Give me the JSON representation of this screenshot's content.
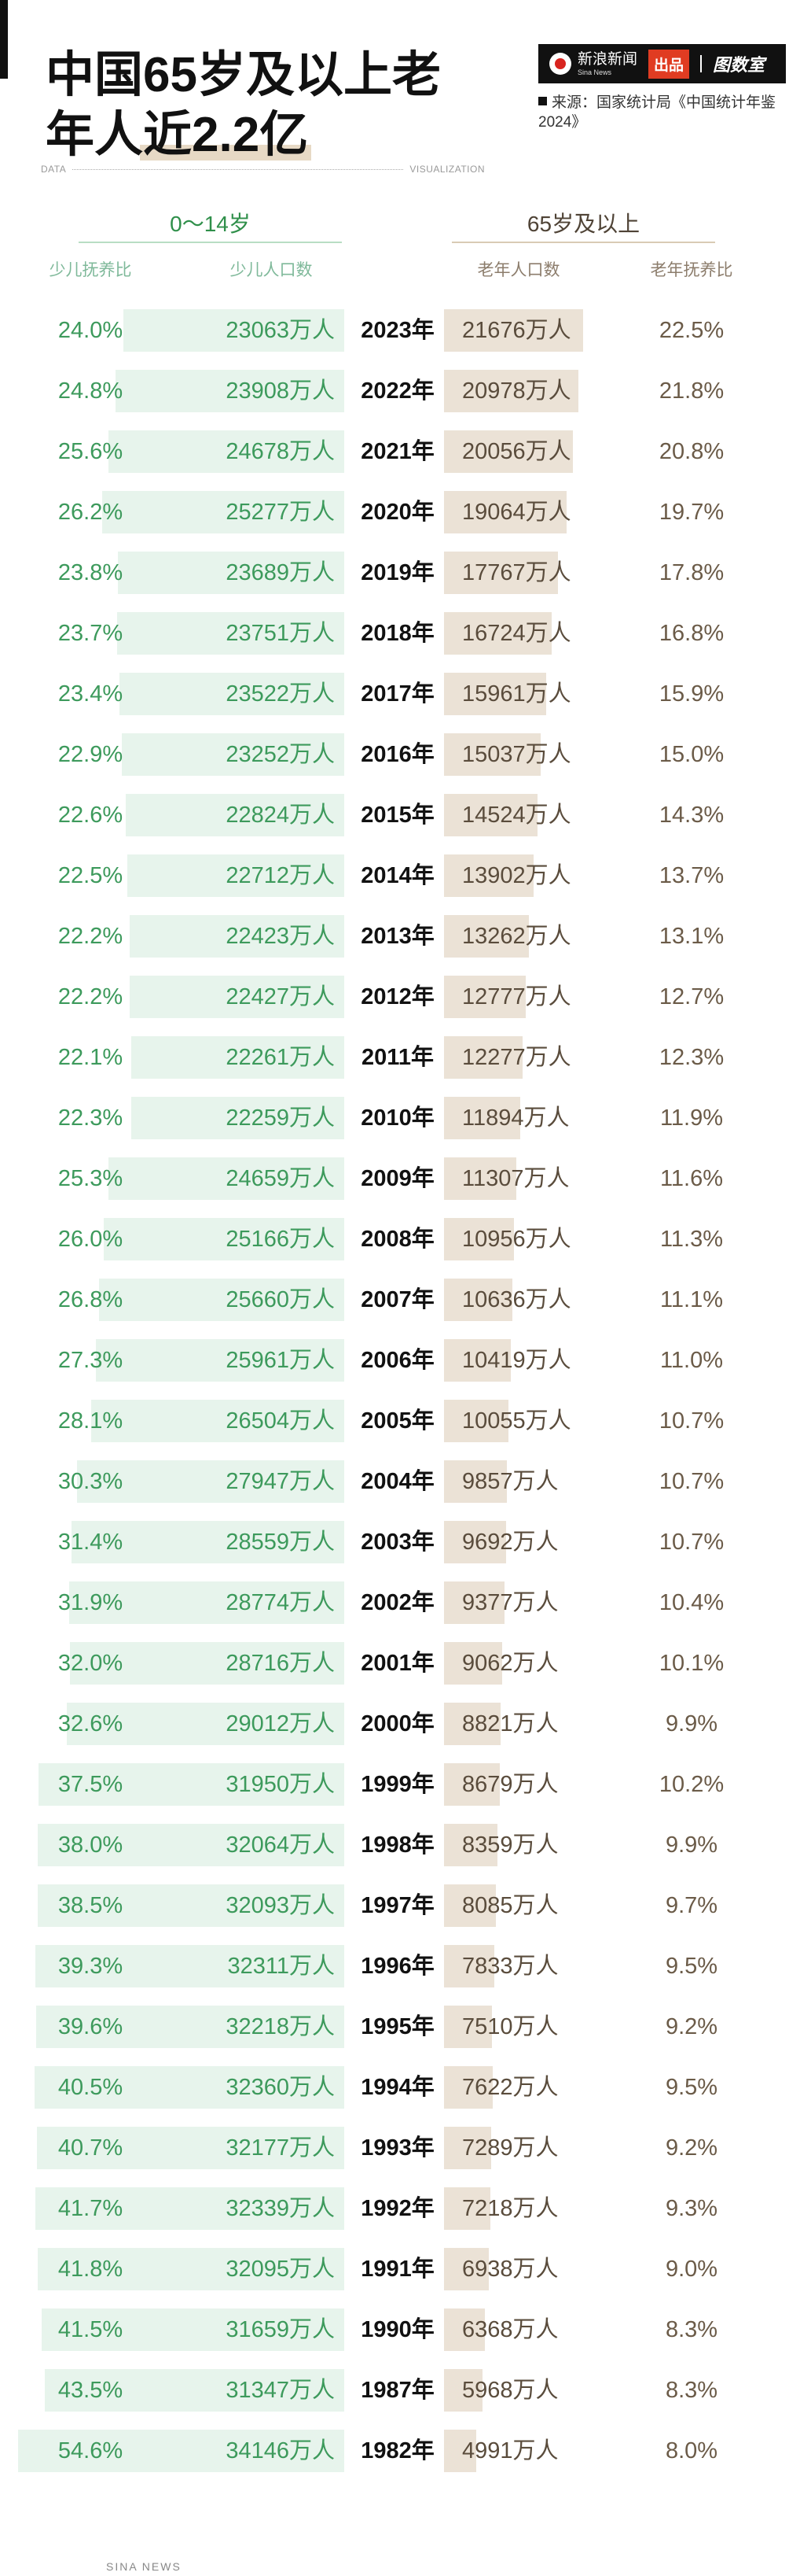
{
  "title": {
    "line1": "中国65岁及以上老",
    "line2_plain": "年人",
    "line2_highlight": "近2.2亿"
  },
  "logo": {
    "main": "新浪新闻",
    "sub": "Sina News",
    "badge": "出品",
    "brand": "图数室"
  },
  "source": {
    "text": "来源：国家统计局《中国统计年鉴2024》"
  },
  "labels": {
    "data": "DATA",
    "visualization": "VISUALIZATION"
  },
  "groups": {
    "young": "0～14岁",
    "old": "65岁及以上"
  },
  "columns": {
    "young_ratio": "少儿抚养比",
    "young_pop": "少儿人口数",
    "old_pop": "老年人口数",
    "old_ratio": "老年抚养比"
  },
  "unit": "万人",
  "colors": {
    "young_bar": "#e7f4ec",
    "young_text": "#3d9a5c",
    "old_bar": "#ebe2d6",
    "old_text": "#5a4c3c",
    "highlight": "#e7d9c5"
  },
  "footer": "SINA NEWS",
  "chart_data": {
    "type": "table",
    "title": "中国65岁及以上老年人近2.2亿",
    "columns": [
      "少儿抚养比",
      "少儿人口数",
      "年份",
      "老年人口数",
      "老年抚养比"
    ],
    "rows": [
      {
        "year": "2023年",
        "young_ratio": "24.0%",
        "young_pop": "23063万人",
        "young_value": 23063,
        "old_pop": "21676万人",
        "old_value": 21676,
        "old_ratio": "22.5%"
      },
      {
        "year": "2022年",
        "young_ratio": "24.8%",
        "young_pop": "23908万人",
        "young_value": 23908,
        "old_pop": "20978万人",
        "old_value": 20978,
        "old_ratio": "21.8%"
      },
      {
        "year": "2021年",
        "young_ratio": "25.6%",
        "young_pop": "24678万人",
        "young_value": 24678,
        "old_pop": "20056万人",
        "old_value": 20056,
        "old_ratio": "20.8%"
      },
      {
        "year": "2020年",
        "young_ratio": "26.2%",
        "young_pop": "25277万人",
        "young_value": 25277,
        "old_pop": "19064万人",
        "old_value": 19064,
        "old_ratio": "19.7%"
      },
      {
        "year": "2019年",
        "young_ratio": "23.8%",
        "young_pop": "23689万人",
        "young_value": 23689,
        "old_pop": "17767万人",
        "old_value": 17767,
        "old_ratio": "17.8%"
      },
      {
        "year": "2018年",
        "young_ratio": "23.7%",
        "young_pop": "23751万人",
        "young_value": 23751,
        "old_pop": "16724万人",
        "old_value": 16724,
        "old_ratio": "16.8%"
      },
      {
        "year": "2017年",
        "young_ratio": "23.4%",
        "young_pop": "23522万人",
        "young_value": 23522,
        "old_pop": "15961万人",
        "old_value": 15961,
        "old_ratio": "15.9%"
      },
      {
        "year": "2016年",
        "young_ratio": "22.9%",
        "young_pop": "23252万人",
        "young_value": 23252,
        "old_pop": "15037万人",
        "old_value": 15037,
        "old_ratio": "15.0%"
      },
      {
        "year": "2015年",
        "young_ratio": "22.6%",
        "young_pop": "22824万人",
        "young_value": 22824,
        "old_pop": "14524万人",
        "old_value": 14524,
        "old_ratio": "14.3%"
      },
      {
        "year": "2014年",
        "young_ratio": "22.5%",
        "young_pop": "22712万人",
        "young_value": 22712,
        "old_pop": "13902万人",
        "old_value": 13902,
        "old_ratio": "13.7%"
      },
      {
        "year": "2013年",
        "young_ratio": "22.2%",
        "young_pop": "22423万人",
        "young_value": 22423,
        "old_pop": "13262万人",
        "old_value": 13262,
        "old_ratio": "13.1%"
      },
      {
        "year": "2012年",
        "young_ratio": "22.2%",
        "young_pop": "22427万人",
        "young_value": 22427,
        "old_pop": "12777万人",
        "old_value": 12777,
        "old_ratio": "12.7%"
      },
      {
        "year": "2011年",
        "young_ratio": "22.1%",
        "young_pop": "22261万人",
        "young_value": 22261,
        "old_pop": "12277万人",
        "old_value": 12277,
        "old_ratio": "12.3%"
      },
      {
        "year": "2010年",
        "young_ratio": "22.3%",
        "young_pop": "22259万人",
        "young_value": 22259,
        "old_pop": "11894万人",
        "old_value": 11894,
        "old_ratio": "11.9%"
      },
      {
        "year": "2009年",
        "young_ratio": "25.3%",
        "young_pop": "24659万人",
        "young_value": 24659,
        "old_pop": "11307万人",
        "old_value": 11307,
        "old_ratio": "11.6%"
      },
      {
        "year": "2008年",
        "young_ratio": "26.0%",
        "young_pop": "25166万人",
        "young_value": 25166,
        "old_pop": "10956万人",
        "old_value": 10956,
        "old_ratio": "11.3%"
      },
      {
        "year": "2007年",
        "young_ratio": "26.8%",
        "young_pop": "25660万人",
        "young_value": 25660,
        "old_pop": "10636万人",
        "old_value": 10636,
        "old_ratio": "11.1%"
      },
      {
        "year": "2006年",
        "young_ratio": "27.3%",
        "young_pop": "25961万人",
        "young_value": 25961,
        "old_pop": "10419万人",
        "old_value": 10419,
        "old_ratio": "11.0%"
      },
      {
        "year": "2005年",
        "young_ratio": "28.1%",
        "young_pop": "26504万人",
        "young_value": 26504,
        "old_pop": "10055万人",
        "old_value": 10055,
        "old_ratio": "10.7%"
      },
      {
        "year": "2004年",
        "young_ratio": "30.3%",
        "young_pop": "27947万人",
        "young_value": 27947,
        "old_pop": "9857万人",
        "old_value": 9857,
        "old_ratio": "10.7%"
      },
      {
        "year": "2003年",
        "young_ratio": "31.4%",
        "young_pop": "28559万人",
        "young_value": 28559,
        "old_pop": "9692万人",
        "old_value": 9692,
        "old_ratio": "10.7%"
      },
      {
        "year": "2002年",
        "young_ratio": "31.9%",
        "young_pop": "28774万人",
        "young_value": 28774,
        "old_pop": "9377万人",
        "old_value": 9377,
        "old_ratio": "10.4%"
      },
      {
        "year": "2001年",
        "young_ratio": "32.0%",
        "young_pop": "28716万人",
        "young_value": 28716,
        "old_pop": "9062万人",
        "old_value": 9062,
        "old_ratio": "10.1%"
      },
      {
        "year": "2000年",
        "young_ratio": "32.6%",
        "young_pop": "29012万人",
        "young_value": 29012,
        "old_pop": "8821万人",
        "old_value": 8821,
        "old_ratio": "9.9%"
      },
      {
        "year": "1999年",
        "young_ratio": "37.5%",
        "young_pop": "31950万人",
        "young_value": 31950,
        "old_pop": "8679万人",
        "old_value": 8679,
        "old_ratio": "10.2%"
      },
      {
        "year": "1998年",
        "young_ratio": "38.0%",
        "young_pop": "32064万人",
        "young_value": 32064,
        "old_pop": "8359万人",
        "old_value": 8359,
        "old_ratio": "9.9%"
      },
      {
        "year": "1997年",
        "young_ratio": "38.5%",
        "young_pop": "32093万人",
        "young_value": 32093,
        "old_pop": "8085万人",
        "old_value": 8085,
        "old_ratio": "9.7%"
      },
      {
        "year": "1996年",
        "young_ratio": "39.3%",
        "young_pop": "32311万人",
        "young_value": 32311,
        "old_pop": "7833万人",
        "old_value": 7833,
        "old_ratio": "9.5%"
      },
      {
        "year": "1995年",
        "young_ratio": "39.6%",
        "young_pop": "32218万人",
        "young_value": 32218,
        "old_pop": "7510万人",
        "old_value": 7510,
        "old_ratio": "9.2%"
      },
      {
        "year": "1994年",
        "young_ratio": "40.5%",
        "young_pop": "32360万人",
        "young_value": 32360,
        "old_pop": "7622万人",
        "old_value": 7622,
        "old_ratio": "9.5%"
      },
      {
        "year": "1993年",
        "young_ratio": "40.7%",
        "young_pop": "32177万人",
        "young_value": 32177,
        "old_pop": "7289万人",
        "old_value": 7289,
        "old_ratio": "9.2%"
      },
      {
        "year": "1992年",
        "young_ratio": "41.7%",
        "young_pop": "32339万人",
        "young_value": 32339,
        "old_pop": "7218万人",
        "old_value": 7218,
        "old_ratio": "9.3%"
      },
      {
        "year": "1991年",
        "young_ratio": "41.8%",
        "young_pop": "32095万人",
        "young_value": 32095,
        "old_pop": "6938万人",
        "old_value": 6938,
        "old_ratio": "9.0%"
      },
      {
        "year": "1990年",
        "young_ratio": "41.5%",
        "young_pop": "31659万人",
        "young_value": 31659,
        "old_pop": "6368万人",
        "old_value": 6368,
        "old_ratio": "8.3%"
      },
      {
        "year": "1987年",
        "young_ratio": "43.5%",
        "young_pop": "31347万人",
        "young_value": 31347,
        "old_pop": "5968万人",
        "old_value": 5968,
        "old_ratio": "8.3%"
      },
      {
        "year": "1982年",
        "young_ratio": "54.6%",
        "young_pop": "34146万人",
        "young_value": 34146,
        "old_pop": "4991万人",
        "old_value": 4991,
        "old_ratio": "8.0%"
      }
    ]
  }
}
